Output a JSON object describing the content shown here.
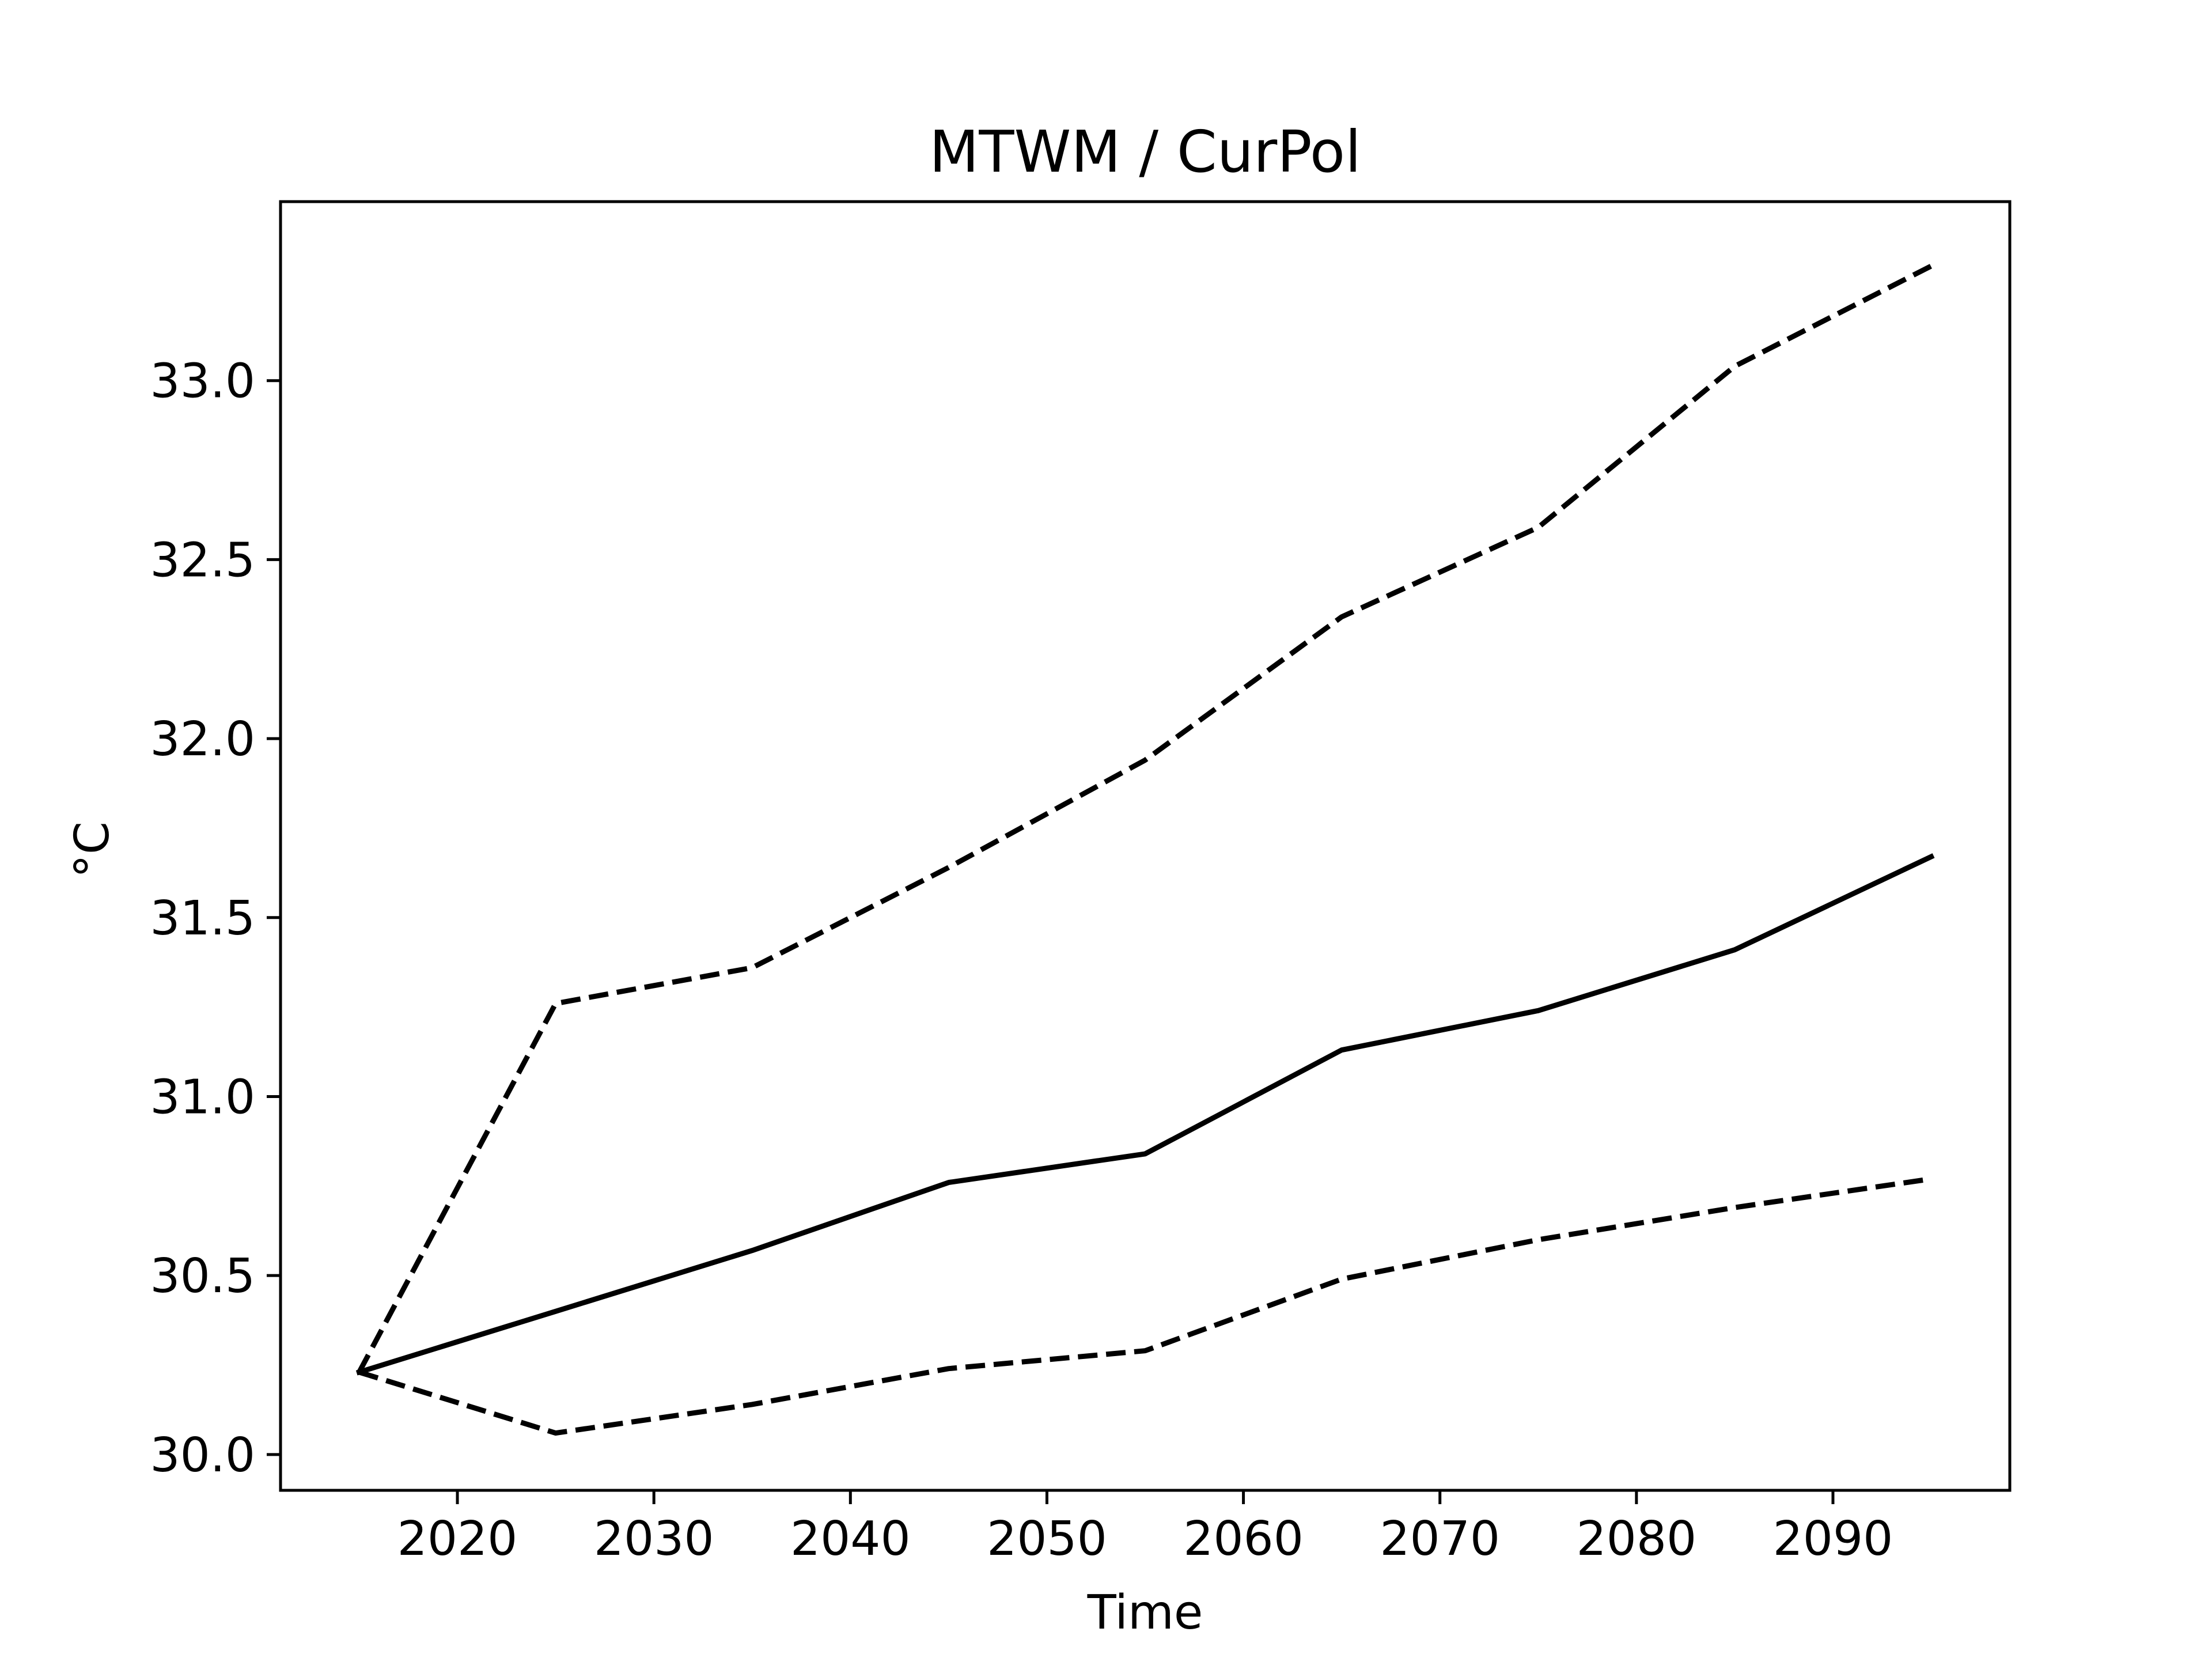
{
  "chart_data": {
    "type": "line",
    "title": "MTWM / CurPol",
    "xlabel": "Time",
    "ylabel": "°C",
    "xlim": [
      2011,
      2099
    ],
    "ylim": [
      29.9,
      33.5
    ],
    "xticks": [
      2020,
      2030,
      2040,
      2050,
      2060,
      2070,
      2080,
      2090
    ],
    "xtick_labels": [
      "2020",
      "2030",
      "2040",
      "2050",
      "2060",
      "2070",
      "2080",
      "2090"
    ],
    "yticks": [
      30.0,
      30.5,
      31.0,
      31.5,
      32.0,
      32.5,
      33.0
    ],
    "ytick_labels": [
      "30.0",
      "30.5",
      "31.0",
      "31.5",
      "32.0",
      "32.5",
      "33.0"
    ],
    "grid": false,
    "legend": "none",
    "x": [
      2015,
      2025,
      2035,
      2045,
      2055,
      2065,
      2075,
      2085,
      2095
    ],
    "series": [
      {
        "style": "solid",
        "color": "#000000",
        "values": [
          30.23,
          30.4,
          30.57,
          30.76,
          30.84,
          31.13,
          31.24,
          31.41,
          31.67
        ]
      },
      {
        "style": "dashed",
        "color": "#000000",
        "values": [
          30.23,
          31.26,
          31.36,
          31.64,
          31.94,
          32.34,
          32.59,
          33.04,
          33.32
        ]
      },
      {
        "style": "dashed",
        "color": "#000000",
        "values": [
          30.23,
          30.06,
          30.14,
          30.24,
          30.29,
          30.49,
          30.6,
          30.69,
          30.77
        ]
      }
    ]
  }
}
